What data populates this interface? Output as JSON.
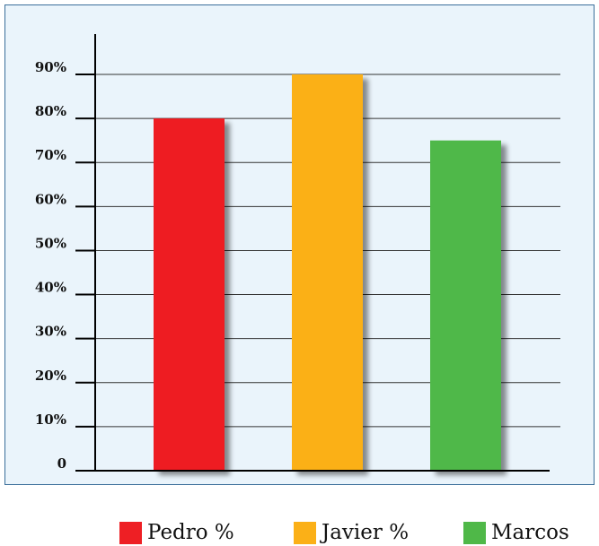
{
  "chart_data": {
    "type": "bar",
    "categories": [
      "Pedro %",
      "Javier %",
      "Marcos"
    ],
    "values": [
      80,
      90,
      75
    ],
    "colors": [
      "#ee1f24",
      "#fbb017",
      "#4fb848"
    ],
    "ylim": [
      0,
      90
    ],
    "yticks": [
      0,
      10,
      20,
      30,
      40,
      50,
      60,
      70,
      80,
      90
    ],
    "ytick_labels": [
      "0",
      "10%",
      "20%",
      "30%",
      "40%",
      "50%",
      "60%",
      "70%",
      "80%",
      "90%"
    ],
    "grid": true,
    "legend_position": "bottom",
    "title": "",
    "xlabel": "",
    "ylabel": ""
  }
}
